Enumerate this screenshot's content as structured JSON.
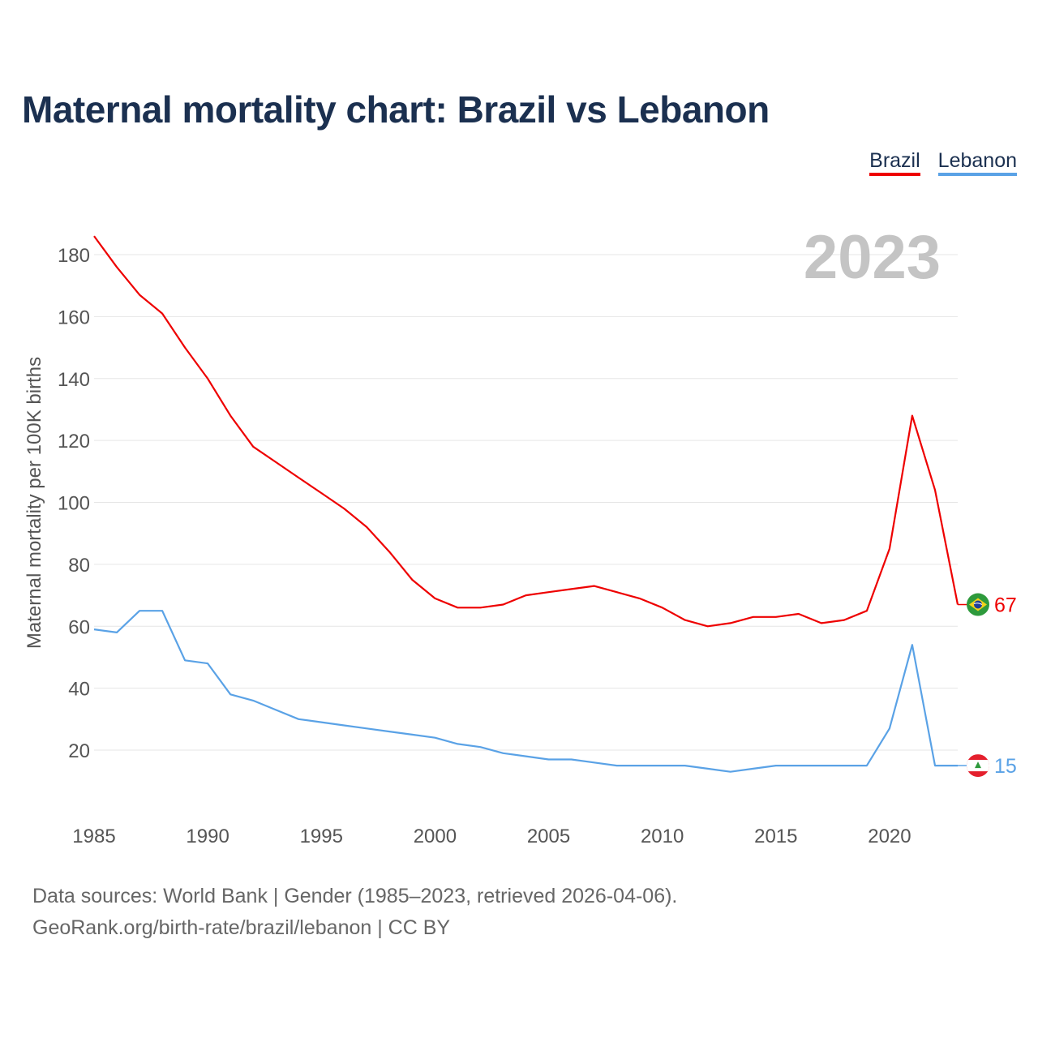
{
  "title": "Maternal mortality chart: Brazil vs Lebanon",
  "legend": [
    {
      "label": "Brazil",
      "color": "#ee0000"
    },
    {
      "label": "Lebanon",
      "color": "#5aa2e6"
    }
  ],
  "footer": {
    "line1": "Data sources: World Bank | Gender (1985–2023, retrieved 2026-04-06).",
    "line2": "GeoRank.org/birth-rate/brazil/lebanon | CC BY"
  },
  "chart_data": {
    "type": "line",
    "title": "Maternal mortality chart: Brazil vs Lebanon",
    "year_label": "2023",
    "ylabel": "Maternal mortality per 100K births",
    "xlabel": "",
    "xlim": [
      1985,
      2023
    ],
    "ylim": [
      0,
      190
    ],
    "x_ticks": [
      1985,
      1990,
      1995,
      2000,
      2005,
      2010,
      2015,
      2020
    ],
    "y_ticks": [
      20,
      40,
      60,
      80,
      100,
      120,
      140,
      160,
      180
    ],
    "x": [
      1985,
      1986,
      1987,
      1988,
      1989,
      1990,
      1991,
      1992,
      1993,
      1994,
      1995,
      1996,
      1997,
      1998,
      1999,
      2000,
      2001,
      2002,
      2003,
      2004,
      2005,
      2006,
      2007,
      2008,
      2009,
      2010,
      2011,
      2012,
      2013,
      2014,
      2015,
      2016,
      2017,
      2018,
      2019,
      2020,
      2021,
      2022,
      2023
    ],
    "series": [
      {
        "name": "Brazil",
        "color": "#ee0000",
        "end_label": "67",
        "flag": "brazil-flag-icon",
        "values": [
          186,
          176,
          167,
          161,
          150,
          140,
          128,
          118,
          113,
          108,
          103,
          98,
          92,
          84,
          75,
          69,
          66,
          66,
          67,
          70,
          71,
          72,
          73,
          71,
          69,
          66,
          62,
          60,
          61,
          63,
          63,
          64,
          61,
          62,
          65,
          85,
          128,
          104,
          67
        ]
      },
      {
        "name": "Lebanon",
        "color": "#5aa2e6",
        "end_label": "15",
        "flag": "lebanon-flag-icon",
        "values": [
          59,
          58,
          65,
          65,
          49,
          48,
          38,
          36,
          33,
          30,
          29,
          28,
          27,
          26,
          25,
          24,
          22,
          21,
          19,
          18,
          17,
          17,
          16,
          15,
          15,
          15,
          15,
          14,
          13,
          14,
          15,
          15,
          15,
          15,
          15,
          27,
          54,
          15,
          15
        ]
      }
    ]
  }
}
